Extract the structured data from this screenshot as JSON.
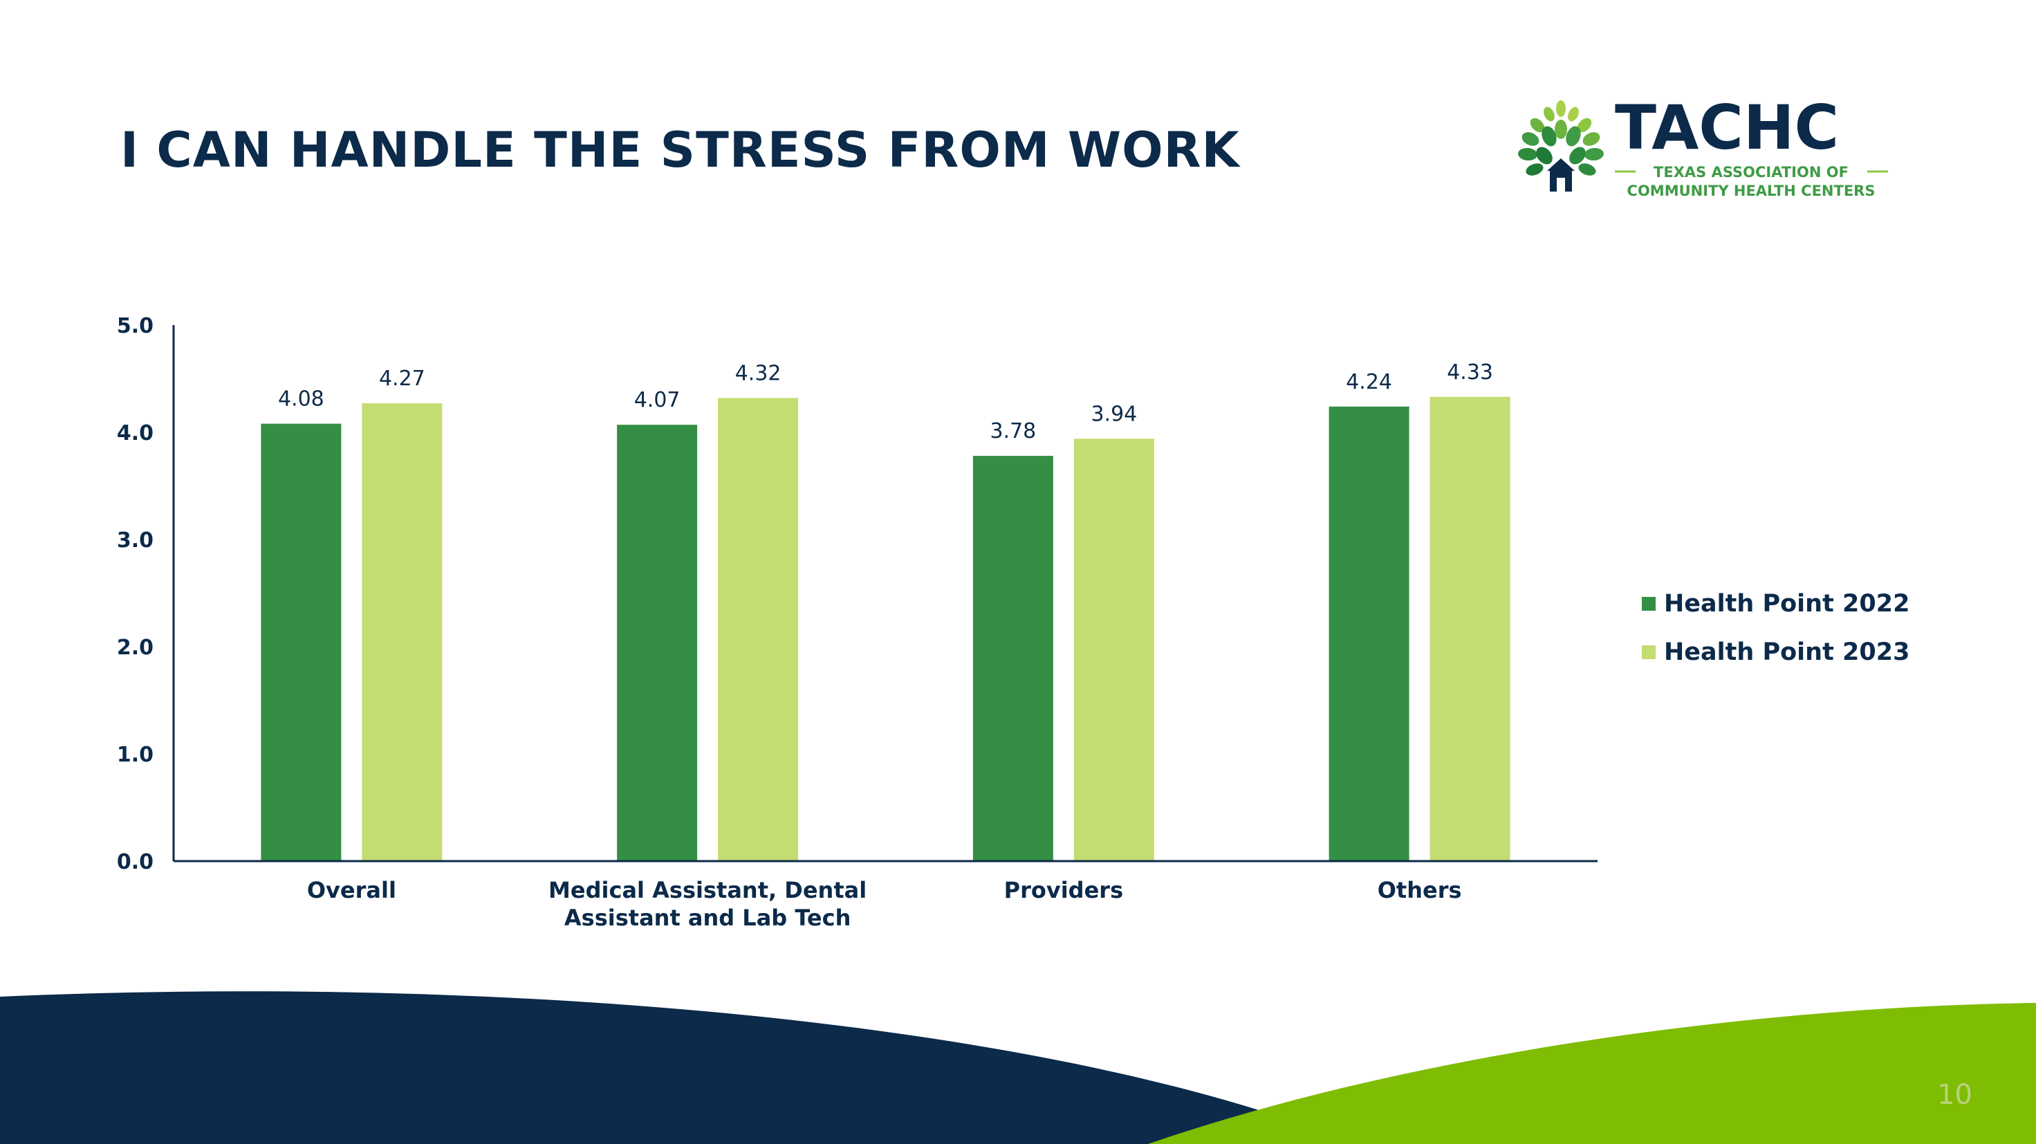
{
  "slide": {
    "title": "I CAN HANDLE THE STRESS FROM WORK",
    "page_number": "10"
  },
  "logo": {
    "name": "TACHC",
    "tagline_line1": "TEXAS ASSOCIATION OF",
    "tagline_line2": "COMMUNITY HEALTH CENTERS",
    "icon": "tree-house-icon"
  },
  "colors": {
    "navy": "#0c2a4a",
    "dark_green": "#348f45",
    "light_green": "#c3dd72",
    "bright_green": "#7fbc04"
  },
  "chart_data": {
    "type": "bar",
    "title": "",
    "xlabel": "",
    "ylabel": "",
    "ylim": [
      0,
      5
    ],
    "yticks": [
      "0.0",
      "1.0",
      "2.0",
      "3.0",
      "4.0",
      "5.0"
    ],
    "grid": false,
    "legend_position": "right",
    "categories": [
      [
        "Overall"
      ],
      [
        "Medical Assistant, Dental",
        "Assistant and Lab Tech"
      ],
      [
        "Providers"
      ],
      [
        "Others"
      ]
    ],
    "series": [
      {
        "name": "Health Point 2022",
        "color": "#348f45",
        "values": [
          4.08,
          4.07,
          3.78,
          4.24
        ]
      },
      {
        "name": "Health Point 2023",
        "color": "#c3dd72",
        "values": [
          4.27,
          4.32,
          3.94,
          4.33
        ]
      }
    ]
  }
}
